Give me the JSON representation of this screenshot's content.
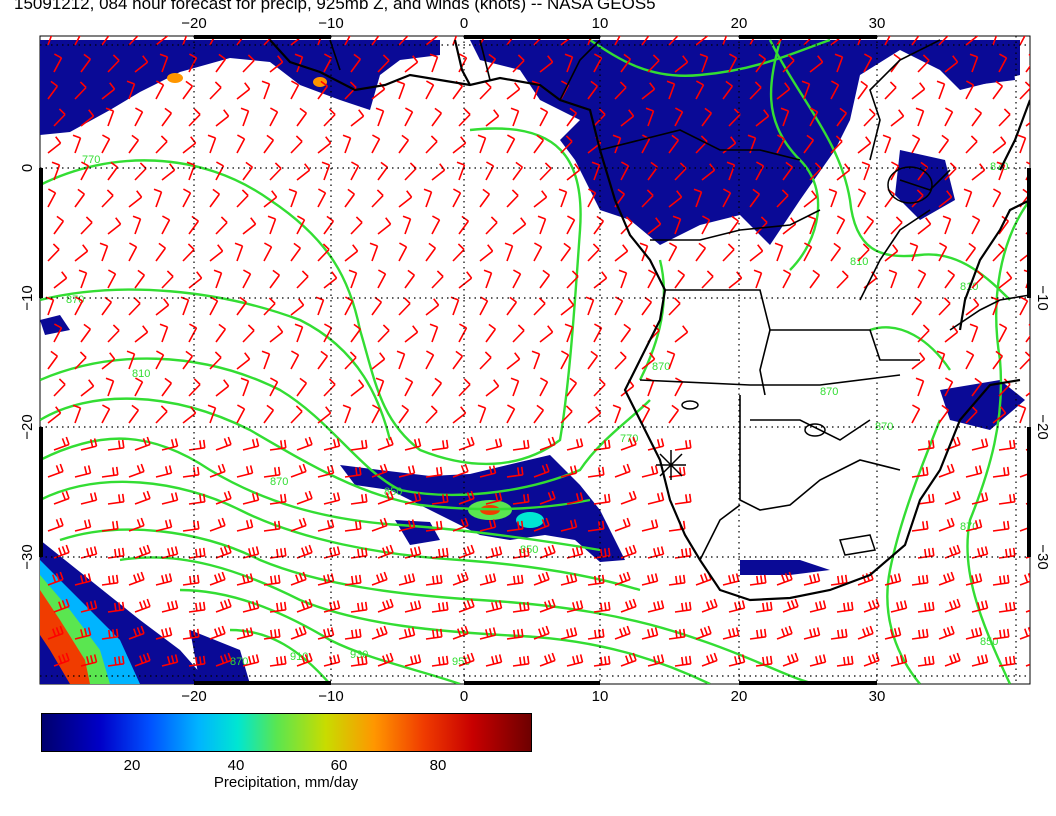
{
  "title": "15091212, 084 hour forecast for precip, 925mb Z, and winds (knots) -- NASA GEOS5",
  "lon_ticks": [
    "−20",
    "−10",
    "0",
    "10",
    "20",
    "30"
  ],
  "lat_ticks": [
    "0",
    "−10",
    "−20",
    "−30"
  ],
  "contour_labels": [
    "770",
    "870",
    "850",
    "870",
    "810",
    "850",
    "870",
    "930",
    "950",
    "770",
    "870",
    "810",
    "870",
    "870",
    "810",
    "870",
    "870",
    "910",
    "850"
  ],
  "colorbar": {
    "ticks": [
      "20",
      "40",
      "60",
      "80"
    ],
    "label": "Precipitation, mm/day"
  },
  "colors": {
    "wind_barbs": "#ff0000",
    "contours": "#33dd33",
    "coastlines": "#000000",
    "precip_low": "#00008b"
  },
  "layers": [
    "precipitation",
    "925mb geopotential height",
    "wind barbs",
    "coastlines and borders",
    "lat/lon grid"
  ]
}
